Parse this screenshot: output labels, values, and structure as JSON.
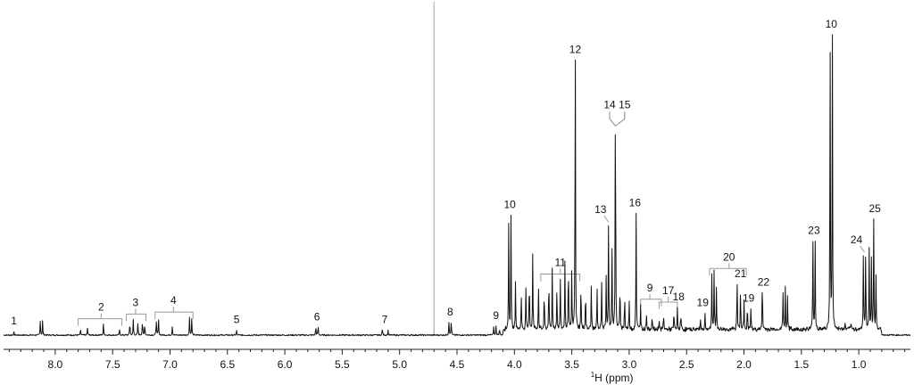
{
  "chart_data": {
    "type": "line",
    "title": "",
    "xlabel": "H (ppm)",
    "xlabel_superscript": "1",
    "ylabel": "",
    "xlim": [
      8.45,
      0.55
    ],
    "x_reversed": true,
    "x_ticks": [
      {
        "value": 8.0,
        "label": "8.0"
      },
      {
        "value": 7.5,
        "label": "7.5"
      },
      {
        "value": 7.0,
        "label": "7.0"
      },
      {
        "value": 6.5,
        "label": "6.5"
      },
      {
        "value": 6.0,
        "label": "6.0"
      },
      {
        "value": 5.5,
        "label": "5.5"
      },
      {
        "value": 5.0,
        "label": "5.0"
      },
      {
        "value": 4.5,
        "label": "4.5"
      },
      {
        "value": 4.0,
        "label": "4.0"
      },
      {
        "value": 3.5,
        "label": "3.5"
      },
      {
        "value": 3.0,
        "label": "3.0"
      },
      {
        "value": 2.5,
        "label": "2.5"
      },
      {
        "value": 2.0,
        "label": "2.0"
      },
      {
        "value": 1.5,
        "label": "1.5"
      },
      {
        "value": 1.0,
        "label": "1.0"
      }
    ],
    "grid": false,
    "legend": "none",
    "colors": {
      "spectrum": "#111111",
      "solvent": "#bbbbbb",
      "bracket": "#999999",
      "axis": "#222222"
    },
    "solvent_peak_ppm": 4.7,
    "peaks": [
      {
        "ppm": 8.36,
        "h": 0.01
      },
      {
        "ppm": 8.13,
        "h": 0.045
      },
      {
        "ppm": 8.11,
        "h": 0.045
      },
      {
        "ppm": 7.78,
        "h": 0.02
      },
      {
        "ppm": 7.72,
        "h": 0.025
      },
      {
        "ppm": 7.58,
        "h": 0.04
      },
      {
        "ppm": 7.44,
        "h": 0.02
      },
      {
        "ppm": 7.35,
        "h": 0.045
      },
      {
        "ppm": 7.32,
        "h": 0.05
      },
      {
        "ppm": 7.28,
        "h": 0.04
      },
      {
        "ppm": 7.24,
        "h": 0.045
      },
      {
        "ppm": 7.22,
        "h": 0.04
      },
      {
        "ppm": 7.12,
        "h": 0.055
      },
      {
        "ppm": 7.1,
        "h": 0.055
      },
      {
        "ppm": 6.98,
        "h": 0.03
      },
      {
        "ppm": 6.83,
        "h": 0.06
      },
      {
        "ppm": 6.81,
        "h": 0.055
      },
      {
        "ppm": 6.42,
        "h": 0.015
      },
      {
        "ppm": 5.73,
        "h": 0.03
      },
      {
        "ppm": 5.71,
        "h": 0.03
      },
      {
        "ppm": 5.15,
        "h": 0.025
      },
      {
        "ppm": 5.1,
        "h": 0.015
      },
      {
        "ppm": 4.57,
        "h": 0.05
      },
      {
        "ppm": 4.55,
        "h": 0.05
      },
      {
        "ppm": 4.18,
        "h": 0.025
      },
      {
        "ppm": 4.16,
        "h": 0.03
      },
      {
        "ppm": 4.13,
        "h": 0.02
      },
      {
        "ppm": 4.05,
        "h": 0.34
      },
      {
        "ppm": 4.03,
        "h": 0.36
      },
      {
        "ppm": 3.99,
        "h": 0.16
      },
      {
        "ppm": 3.94,
        "h": 0.12
      },
      {
        "ppm": 3.9,
        "h": 0.14
      },
      {
        "ppm": 3.87,
        "h": 0.19
      },
      {
        "ppm": 3.84,
        "h": 0.24
      },
      {
        "ppm": 3.79,
        "h": 0.15
      },
      {
        "ppm": 3.74,
        "h": 0.13
      },
      {
        "ppm": 3.7,
        "h": 0.18
      },
      {
        "ppm": 3.67,
        "h": 0.2
      },
      {
        "ppm": 3.63,
        "h": 0.14
      },
      {
        "ppm": 3.6,
        "h": 0.17
      },
      {
        "ppm": 3.56,
        "h": 0.21
      },
      {
        "ppm": 3.53,
        "h": 0.23
      },
      {
        "ppm": 3.5,
        "h": 0.19
      },
      {
        "ppm": 3.47,
        "h": 1.0
      },
      {
        "ppm": 3.42,
        "h": 0.16
      },
      {
        "ppm": 3.38,
        "h": 0.14
      },
      {
        "ppm": 3.33,
        "h": 0.15
      },
      {
        "ppm": 3.28,
        "h": 0.13
      },
      {
        "ppm": 3.24,
        "h": 0.15
      },
      {
        "ppm": 3.2,
        "h": 0.17
      },
      {
        "ppm": 3.18,
        "h": 0.35
      },
      {
        "ppm": 3.15,
        "h": 0.29
      },
      {
        "ppm": 3.12,
        "h": 0.87
      },
      {
        "ppm": 3.08,
        "h": 0.16
      },
      {
        "ppm": 3.04,
        "h": 0.12
      },
      {
        "ppm": 3.0,
        "h": 0.1
      },
      {
        "ppm": 2.94,
        "h": 0.37
      },
      {
        "ppm": 2.9,
        "h": 0.08
      },
      {
        "ppm": 2.85,
        "h": 0.06
      },
      {
        "ppm": 2.8,
        "h": 0.05
      },
      {
        "ppm": 2.74,
        "h": 0.04
      },
      {
        "ppm": 2.7,
        "h": 0.05
      },
      {
        "ppm": 2.61,
        "h": 0.06
      },
      {
        "ppm": 2.58,
        "h": 0.07
      },
      {
        "ppm": 2.55,
        "h": 0.05
      },
      {
        "ppm": 2.38,
        "h": 0.04
      },
      {
        "ppm": 2.34,
        "h": 0.05
      },
      {
        "ppm": 2.28,
        "h": 0.17
      },
      {
        "ppm": 2.26,
        "h": 0.19
      },
      {
        "ppm": 2.24,
        "h": 0.14
      },
      {
        "ppm": 2.06,
        "h": 0.17
      },
      {
        "ppm": 2.03,
        "h": 0.15
      },
      {
        "ppm": 2.0,
        "h": 0.09
      },
      {
        "ppm": 1.97,
        "h": 0.08
      },
      {
        "ppm": 1.94,
        "h": 0.07
      },
      {
        "ppm": 1.84,
        "h": 0.17
      },
      {
        "ppm": 1.66,
        "h": 0.12
      },
      {
        "ppm": 1.64,
        "h": 0.13
      },
      {
        "ppm": 1.62,
        "h": 0.11
      },
      {
        "ppm": 1.4,
        "h": 0.31
      },
      {
        "ppm": 1.38,
        "h": 0.29
      },
      {
        "ppm": 1.25,
        "h": 0.99
      },
      {
        "ppm": 1.23,
        "h": 0.99
      },
      {
        "ppm": 1.12,
        "h": 0.02
      },
      {
        "ppm": 1.07,
        "h": 0.02
      },
      {
        "ppm": 0.96,
        "h": 0.26
      },
      {
        "ppm": 0.94,
        "h": 0.27
      },
      {
        "ppm": 0.91,
        "h": 0.27
      },
      {
        "ppm": 0.89,
        "h": 0.23
      },
      {
        "ppm": 0.87,
        "h": 0.34
      },
      {
        "ppm": 0.85,
        "h": 0.17
      }
    ],
    "annotations": [
      {
        "label": "1",
        "ppm": 8.36
      },
      {
        "label": "2",
        "ppm": 7.6,
        "bracket": [
          7.8,
          7.42
        ]
      },
      {
        "label": "3",
        "ppm": 7.3,
        "bracket": [
          7.38,
          7.21
        ]
      },
      {
        "label": "4",
        "ppm": 6.97,
        "bracket": [
          7.13,
          6.8
        ]
      },
      {
        "label": "5",
        "ppm": 6.42
      },
      {
        "label": "6",
        "ppm": 5.72
      },
      {
        "label": "7",
        "ppm": 5.13
      },
      {
        "label": "8",
        "ppm": 4.56
      },
      {
        "label": "9",
        "ppm": 4.16
      },
      {
        "label": "10",
        "ppm": 4.04
      },
      {
        "label": "11",
        "ppm": 3.6,
        "bracket": [
          3.77,
          3.43
        ]
      },
      {
        "label": "12",
        "ppm": 3.47
      },
      {
        "label": "13",
        "ppm": 3.25,
        "pointer": 3.18
      },
      {
        "label": "14",
        "ppm": 3.17,
        "fork": 3.12
      },
      {
        "label": "15",
        "ppm": 3.04,
        "fork": 3.12
      },
      {
        "label": "16",
        "ppm": 2.95
      },
      {
        "label": "9",
        "ppm": 2.82,
        "bracket": [
          2.9,
          2.72
        ]
      },
      {
        "label": "17",
        "ppm": 2.66,
        "bracket": [
          2.74,
          2.58
        ]
      },
      {
        "label": "18",
        "ppm": 2.57
      },
      {
        "label": "19",
        "ppm": 2.36
      },
      {
        "label": "20",
        "ppm": 2.13,
        "bracket": [
          2.3,
          1.98
        ]
      },
      {
        "label": "19",
        "ppm": 1.96
      },
      {
        "label": "21",
        "ppm": 2.03
      },
      {
        "label": "22",
        "ppm": 1.83
      },
      {
        "label": "23",
        "ppm": 1.39
      },
      {
        "label": "10",
        "ppm": 1.24
      },
      {
        "label": "24",
        "ppm": 1.02,
        "pointer": 0.95
      },
      {
        "label": "25",
        "ppm": 0.86
      }
    ]
  }
}
